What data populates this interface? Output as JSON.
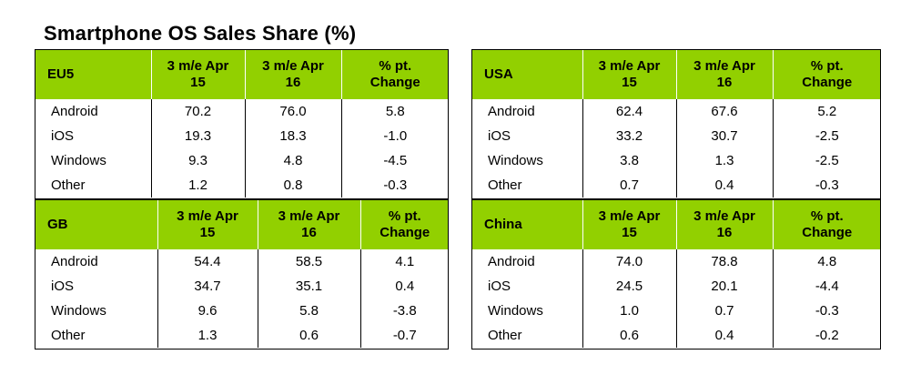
{
  "title": "Smartphone OS Sales Share (%)",
  "columns": [
    "3 m/e Apr\n15",
    "3 m/e Apr\n16",
    "% pt.\nChange"
  ],
  "colors": {
    "header_bg": "#92d000",
    "border": "#000000"
  },
  "chart_data": [
    {
      "type": "table",
      "region": "EU5",
      "columns": [
        "3 m/e Apr 15",
        "3 m/e Apr 16",
        "% pt. Change"
      ],
      "rows": [
        {
          "os": "Android",
          "values": [
            "70.2",
            "76.0",
            "5.8"
          ]
        },
        {
          "os": "iOS",
          "values": [
            "19.3",
            "18.3",
            "-1.0"
          ]
        },
        {
          "os": "Windows",
          "values": [
            "9.3",
            "4.8",
            "-4.5"
          ]
        },
        {
          "os": "Other",
          "values": [
            "1.2",
            "0.8",
            "-0.3"
          ]
        }
      ]
    },
    {
      "type": "table",
      "region": "USA",
      "columns": [
        "3 m/e Apr 15",
        "3 m/e Apr 16",
        "% pt. Change"
      ],
      "rows": [
        {
          "os": "Android",
          "values": [
            "62.4",
            "67.6",
            "5.2"
          ]
        },
        {
          "os": "iOS",
          "values": [
            "33.2",
            "30.7",
            "-2.5"
          ]
        },
        {
          "os": "Windows",
          "values": [
            "3.8",
            "1.3",
            "-2.5"
          ]
        },
        {
          "os": "Other",
          "values": [
            "0.7",
            "0.4",
            "-0.3"
          ]
        }
      ]
    },
    {
      "type": "table",
      "region": "GB",
      "columns": [
        "3 m/e Apr 15",
        "3 m/e Apr 16",
        "% pt. Change"
      ],
      "rows": [
        {
          "os": "Android",
          "values": [
            "54.4",
            "58.5",
            "4.1"
          ]
        },
        {
          "os": "iOS",
          "values": [
            "34.7",
            "35.1",
            "0.4"
          ]
        },
        {
          "os": "Windows",
          "values": [
            "9.6",
            "5.8",
            "-3.8"
          ]
        },
        {
          "os": "Other",
          "values": [
            "1.3",
            "0.6",
            "-0.7"
          ]
        }
      ]
    },
    {
      "type": "table",
      "region": "China",
      "columns": [
        "3 m/e Apr 15",
        "3 m/e Apr 16",
        "% pt. Change"
      ],
      "rows": [
        {
          "os": "Android",
          "values": [
            "74.0",
            "78.8",
            "4.8"
          ]
        },
        {
          "os": "iOS",
          "values": [
            "24.5",
            "20.1",
            "-4.4"
          ]
        },
        {
          "os": "Windows",
          "values": [
            "1.0",
            "0.7",
            "-0.3"
          ]
        },
        {
          "os": "Other",
          "values": [
            "0.6",
            "0.4",
            "-0.2"
          ]
        }
      ]
    }
  ]
}
